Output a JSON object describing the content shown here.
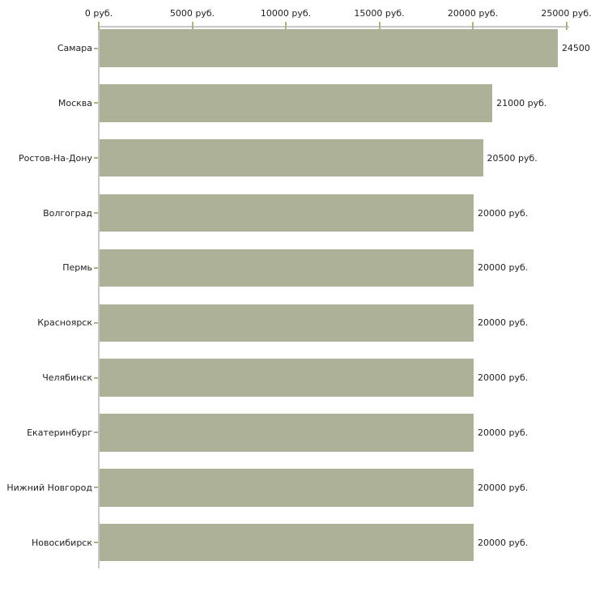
{
  "chart_data": {
    "type": "bar",
    "orientation": "horizontal",
    "title": "",
    "xlabel": "",
    "ylabel": "",
    "xlim": [
      0,
      25000
    ],
    "axis_position": "top",
    "grid": false,
    "legend": false,
    "x_ticks": [
      {
        "value": 0,
        "label": "0 руб."
      },
      {
        "value": 5000,
        "label": "5000 руб."
      },
      {
        "value": 10000,
        "label": "10000 руб."
      },
      {
        "value": 15000,
        "label": "15000 руб."
      },
      {
        "value": 20000,
        "label": "20000 руб."
      },
      {
        "value": 25000,
        "label": "25000 руб."
      }
    ],
    "categories": [
      "Самара",
      "Москва",
      "Ростов-На-Дону",
      "Волгоград",
      "Пермь",
      "Красноярск",
      "Челябинск",
      "Екатеринбург",
      "Нижний Новгород",
      "Новосибирск"
    ],
    "values": [
      24500,
      21000,
      20500,
      20000,
      20000,
      20000,
      20000,
      20000,
      20000,
      20000
    ],
    "value_labels": [
      "24500",
      "21000 руб.",
      "20500 руб.",
      "20000 руб.",
      "20000 руб.",
      "20000 руб.",
      "20000 руб.",
      "20000 руб.",
      "20000 руб.",
      "20000 руб."
    ],
    "colors": {
      "bar": "#acb197",
      "axis_line": "#c8c8c8",
      "tick": "#b0b184",
      "text": "#222222",
      "background": "#ffffff"
    }
  }
}
